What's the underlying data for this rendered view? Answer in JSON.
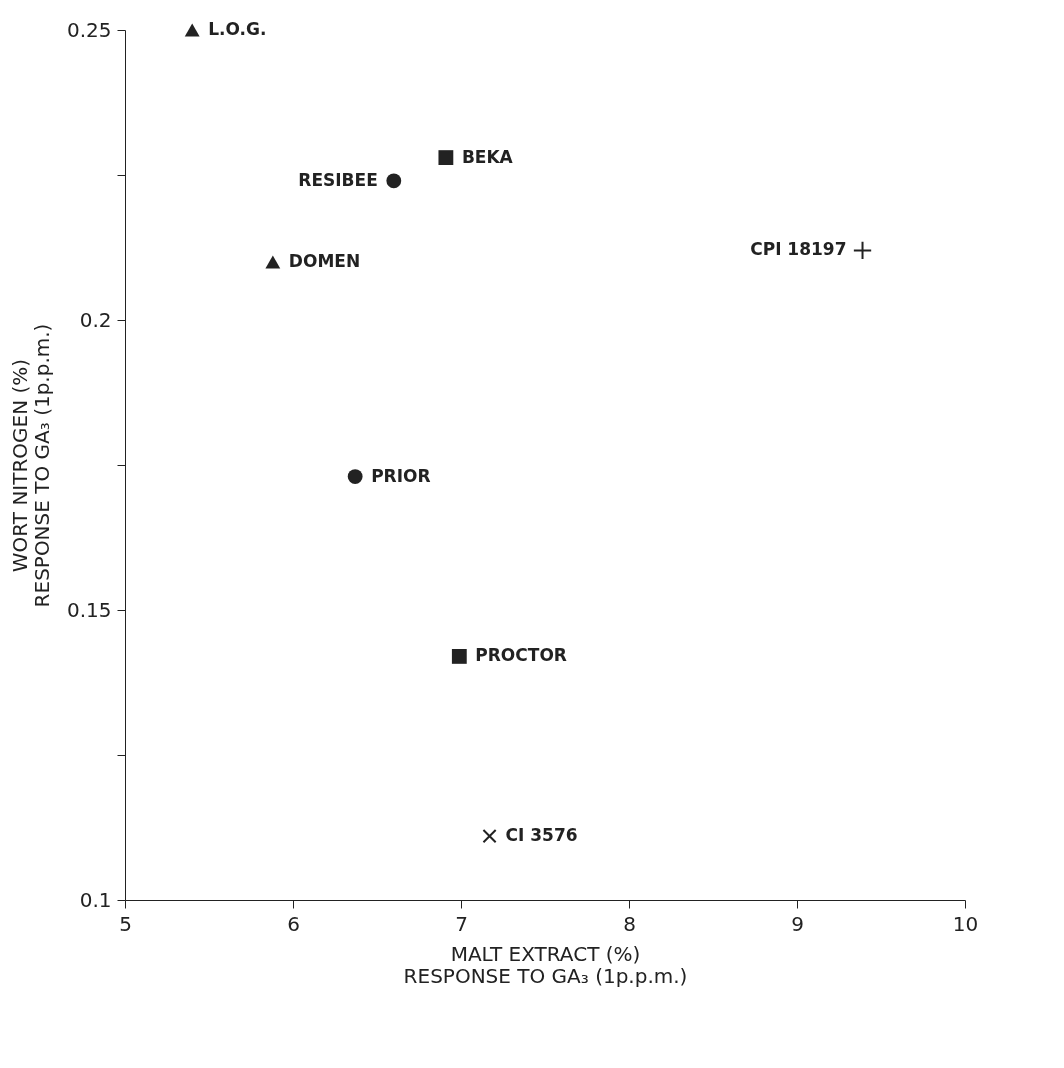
{
  "chart_data": {
    "type": "scatter",
    "xlabel": "MALT EXTRACT (%)\nRESPONSE TO GA₃ (1p.p.m.)",
    "ylabel": "WORT NITROGEN (%)\nRESPONSE TO GA₃ (1p.p.m.)",
    "xlim": [
      5,
      10
    ],
    "xticks": [
      5,
      6,
      7,
      8,
      9,
      10
    ],
    "ylim": [
      0.1,
      0.25
    ],
    "yticks": [
      0.1,
      {
        "value": 0.125,
        "label": null
      },
      0.15,
      {
        "value": 0.175,
        "label": null
      },
      0.2,
      {
        "value": 0.225,
        "label": null
      },
      0.25
    ],
    "grid": false,
    "series": [
      {
        "name": "L.O.G.",
        "color": "#222222",
        "marker": "triangle",
        "x": [
          5.4
        ],
        "values": [
          0.25
        ]
      },
      {
        "name": "BEKA",
        "color": "#222222",
        "marker": "square",
        "x": [
          6.91
        ],
        "values": [
          0.228
        ]
      },
      {
        "name": "RESIBEE",
        "color": "#222222",
        "marker": "circle",
        "x": [
          6.6
        ],
        "values": [
          0.224
        ]
      },
      {
        "name": "DOMEN",
        "color": "#222222",
        "marker": "triangle",
        "x": [
          5.88
        ],
        "values": [
          0.21
        ]
      },
      {
        "name": "CPI 18197",
        "color": "#222222",
        "marker": "cross",
        "x": [
          9.39
        ],
        "values": [
          0.212
        ]
      },
      {
        "name": "PRIOR",
        "color": "#222222",
        "marker": "circle",
        "x": [
          6.37
        ],
        "values": [
          0.173
        ]
      },
      {
        "name": "PROCTOR",
        "color": "#222222",
        "marker": "square",
        "x": [
          6.99
        ],
        "values": [
          0.142
        ]
      },
      {
        "name": "CI 3576",
        "color": "#222222",
        "marker": "x",
        "x": [
          7.17
        ],
        "values": [
          0.111
        ]
      }
    ]
  }
}
